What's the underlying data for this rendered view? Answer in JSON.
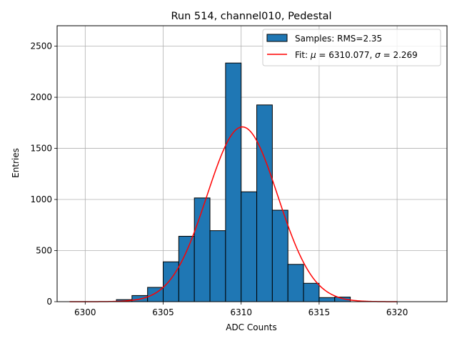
{
  "chart_data": {
    "type": "bar",
    "title": "Run 514, channel010, Pedestal",
    "xlabel": "ADC Counts",
    "ylabel": "Entries",
    "xlim": [
      6298.2,
      6323.2
    ],
    "ylim": [
      0,
      2700
    ],
    "xticks": [
      6300,
      6305,
      6310,
      6315,
      6320
    ],
    "yticks": [
      0,
      500,
      1000,
      1500,
      2000,
      2500
    ],
    "grid": true,
    "legend_placement": "top-right",
    "colors": {
      "bars": "#1f77b4",
      "bar_edge": "#000000",
      "fit": "#ff0000",
      "grid": "#b0b0b0"
    },
    "bins": [
      {
        "left": 6302,
        "right": 6303,
        "value": 20
      },
      {
        "left": 6303,
        "right": 6304,
        "value": 60
      },
      {
        "left": 6304,
        "right": 6305,
        "value": 140
      },
      {
        "left": 6305,
        "right": 6306,
        "value": 390
      },
      {
        "left": 6306,
        "right": 6307,
        "value": 640
      },
      {
        "left": 6307,
        "right": 6308,
        "value": 1015
      },
      {
        "left": 6308,
        "right": 6309,
        "value": 695
      },
      {
        "left": 6309,
        "right": 6310,
        "value": 2335
      },
      {
        "left": 6310,
        "right": 6311,
        "value": 1075
      },
      {
        "left": 6311,
        "right": 6312,
        "value": 1925
      },
      {
        "left": 6312,
        "right": 6313,
        "value": 895
      },
      {
        "left": 6313,
        "right": 6314,
        "value": 365
      },
      {
        "left": 6314,
        "right": 6315,
        "value": 180
      },
      {
        "left": 6315,
        "right": 6316,
        "value": 40
      },
      {
        "left": 6316,
        "right": 6317,
        "value": 45
      }
    ],
    "fit": {
      "mu": 6310.077,
      "sigma": 2.269,
      "amplitude": 1710,
      "x_range": [
        6299,
        6320
      ]
    },
    "legend": [
      {
        "type": "patch",
        "label": "Samples: RMS=2.35"
      },
      {
        "type": "line",
        "label_prefix": "Fit: ",
        "mu_symbol": "μ",
        "mu_text": " = 6310.077, ",
        "sigma_symbol": "σ",
        "sigma_text": " = 2.269"
      }
    ]
  }
}
